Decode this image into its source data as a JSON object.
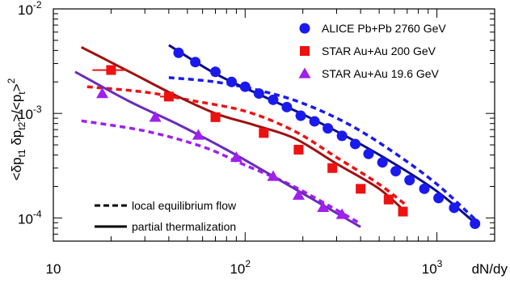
{
  "chart_data": {
    "type": "scatter",
    "x_scale": "log",
    "y_scale": "log",
    "xlim": [
      10,
      2000
    ],
    "ylim": [
      6e-05,
      0.01
    ],
    "ylabel": "<δp_t1 δp_t2>/<p_t>^2",
    "xlabel": "dN/dy",
    "x_ticks": [
      {
        "value": 10,
        "label": "10"
      },
      {
        "value": 100,
        "label": "10",
        "sup": "2"
      },
      {
        "value": 1000,
        "label": "10",
        "sup": "3"
      }
    ],
    "y_ticks": [
      {
        "value": 0.0001,
        "label": "10",
        "sup": "-4"
      },
      {
        "value": 0.001,
        "label": "10",
        "sup": "-3"
      },
      {
        "value": 0.01,
        "label": "10",
        "sup": "-2"
      }
    ],
    "legend_position": "top-right",
    "legend_bottom_position": "bottom-left",
    "series": [
      {
        "name": "ALICE Pb+Pb 2760 GeV",
        "color": "#1a1aee",
        "marker": "circle",
        "points": [
          [
            45,
            0.0038
          ],
          [
            55,
            0.0031
          ],
          [
            70,
            0.0025
          ],
          [
            85,
            0.002
          ],
          [
            100,
            0.0018
          ],
          [
            118,
            0.00155
          ],
          [
            140,
            0.00135
          ],
          [
            165,
            0.00115
          ],
          [
            195,
            0.00095
          ],
          [
            230,
            0.00084
          ],
          [
            270,
            0.00072
          ],
          [
            320,
            0.00061
          ],
          [
            375,
            0.00051
          ],
          [
            440,
            0.00041
          ],
          [
            520,
            0.00034
          ],
          [
            610,
            0.00028
          ],
          [
            720,
            0.00023
          ],
          [
            860,
            0.00019
          ],
          [
            1020,
            0.000155
          ],
          [
            1230,
            0.000125
          ],
          [
            1580,
            8.8e-05
          ]
        ],
        "dashed_curve": [
          [
            40,
            0.0022
          ],
          [
            70,
            0.002
          ],
          [
            120,
            0.00165
          ],
          [
            200,
            0.00125
          ],
          [
            350,
            0.00078
          ],
          [
            600,
            0.00042
          ],
          [
            1000,
            0.00021
          ],
          [
            1600,
            9.5e-05
          ]
        ],
        "solid_curve": [
          [
            40,
            0.0045
          ],
          [
            70,
            0.0024
          ],
          [
            120,
            0.0015
          ],
          [
            200,
            0.00098
          ],
          [
            350,
            0.00058
          ],
          [
            600,
            0.00033
          ],
          [
            1000,
            0.00018
          ],
          [
            1600,
            8.8e-05
          ]
        ]
      },
      {
        "name": "STAR Au+Au 200 GeV",
        "color": "#ee1111",
        "marker": "square",
        "points": [
          [
            20,
            0.0026
          ],
          [
            40,
            0.00145
          ],
          [
            70,
            0.00092
          ],
          [
            125,
            0.00065
          ],
          [
            190,
            0.00045
          ],
          [
            285,
            0.0003
          ],
          [
            400,
            0.00019
          ],
          [
            560,
            0.00015
          ],
          [
            665,
            0.000115
          ]
        ],
        "x_errors": [
          [
            16,
            24
          ],
          [
            36,
            45
          ]
        ],
        "dashed_curve": [
          [
            15,
            0.0018
          ],
          [
            30,
            0.0016
          ],
          [
            50,
            0.00135
          ],
          [
            100,
            0.00105
          ],
          [
            180,
            0.00068
          ],
          [
            300,
            0.00038
          ],
          [
            500,
            0.00021
          ],
          [
            700,
            0.00013
          ]
        ],
        "solid_curve": [
          [
            14,
            0.0043
          ],
          [
            25,
            0.0025
          ],
          [
            40,
            0.0016
          ],
          [
            70,
            0.001
          ],
          [
            110,
            0.00078
          ],
          [
            180,
            0.00058
          ],
          [
            300,
            0.00033
          ],
          [
            500,
            0.00019
          ],
          [
            700,
            0.00011
          ]
        ]
      },
      {
        "name": "STAR Au+Au 19.6 GeV",
        "color": "#a020ee",
        "marker": "triangle",
        "points": [
          [
            18,
            0.00155
          ],
          [
            34,
            0.00092
          ],
          [
            57,
            0.00062
          ],
          [
            90,
            0.00038
          ],
          [
            140,
            0.00025
          ],
          [
            190,
            0.000165
          ],
          [
            255,
            0.000126
          ],
          [
            320,
            0.000108
          ]
        ],
        "dashed_curve": [
          [
            14,
            0.00085
          ],
          [
            30,
            0.00068
          ],
          [
            60,
            0.00048
          ],
          [
            100,
            0.00032
          ],
          [
            170,
            0.00021
          ],
          [
            280,
            0.000128
          ],
          [
            400,
            8.8e-05
          ]
        ],
        "solid_curve": [
          [
            13,
            0.0025
          ],
          [
            25,
            0.0013
          ],
          [
            45,
            0.00078
          ],
          [
            80,
            0.00045
          ],
          [
            140,
            0.00025
          ],
          [
            250,
            0.000135
          ],
          [
            400,
            8.2e-05
          ]
        ]
      }
    ],
    "line_legend": [
      {
        "style": "dashed",
        "label": "local equilibrium flow"
      },
      {
        "style": "solid",
        "label": "partial thermalization"
      }
    ]
  }
}
